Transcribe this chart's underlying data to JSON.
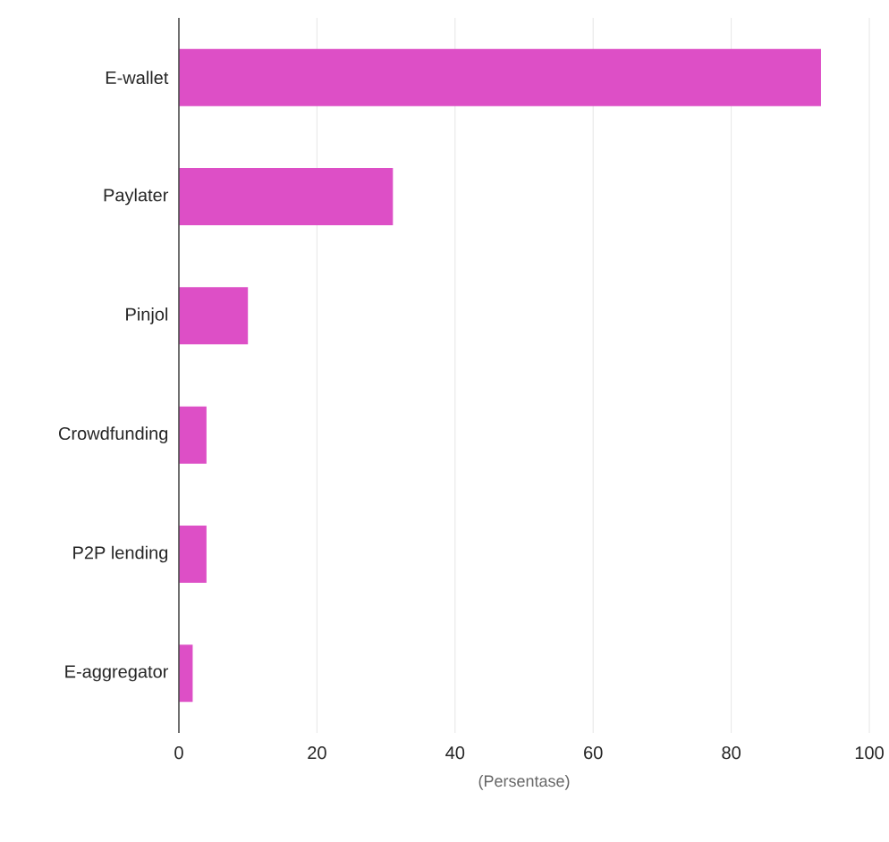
{
  "chart_data": {
    "type": "bar",
    "orientation": "horizontal",
    "xlabel": "(Persentase)",
    "categories": [
      "E-wallet",
      "Paylater",
      "Pinjol",
      "Crowdfunding",
      "P2P lending",
      "E-aggregator"
    ],
    "values": [
      93,
      31,
      10,
      4,
      4,
      2
    ],
    "color": "#dd4fc6",
    "xlim": [
      0,
      100
    ],
    "xticks": [
      0,
      20,
      40,
      60,
      80,
      100
    ],
    "grid": "x"
  }
}
